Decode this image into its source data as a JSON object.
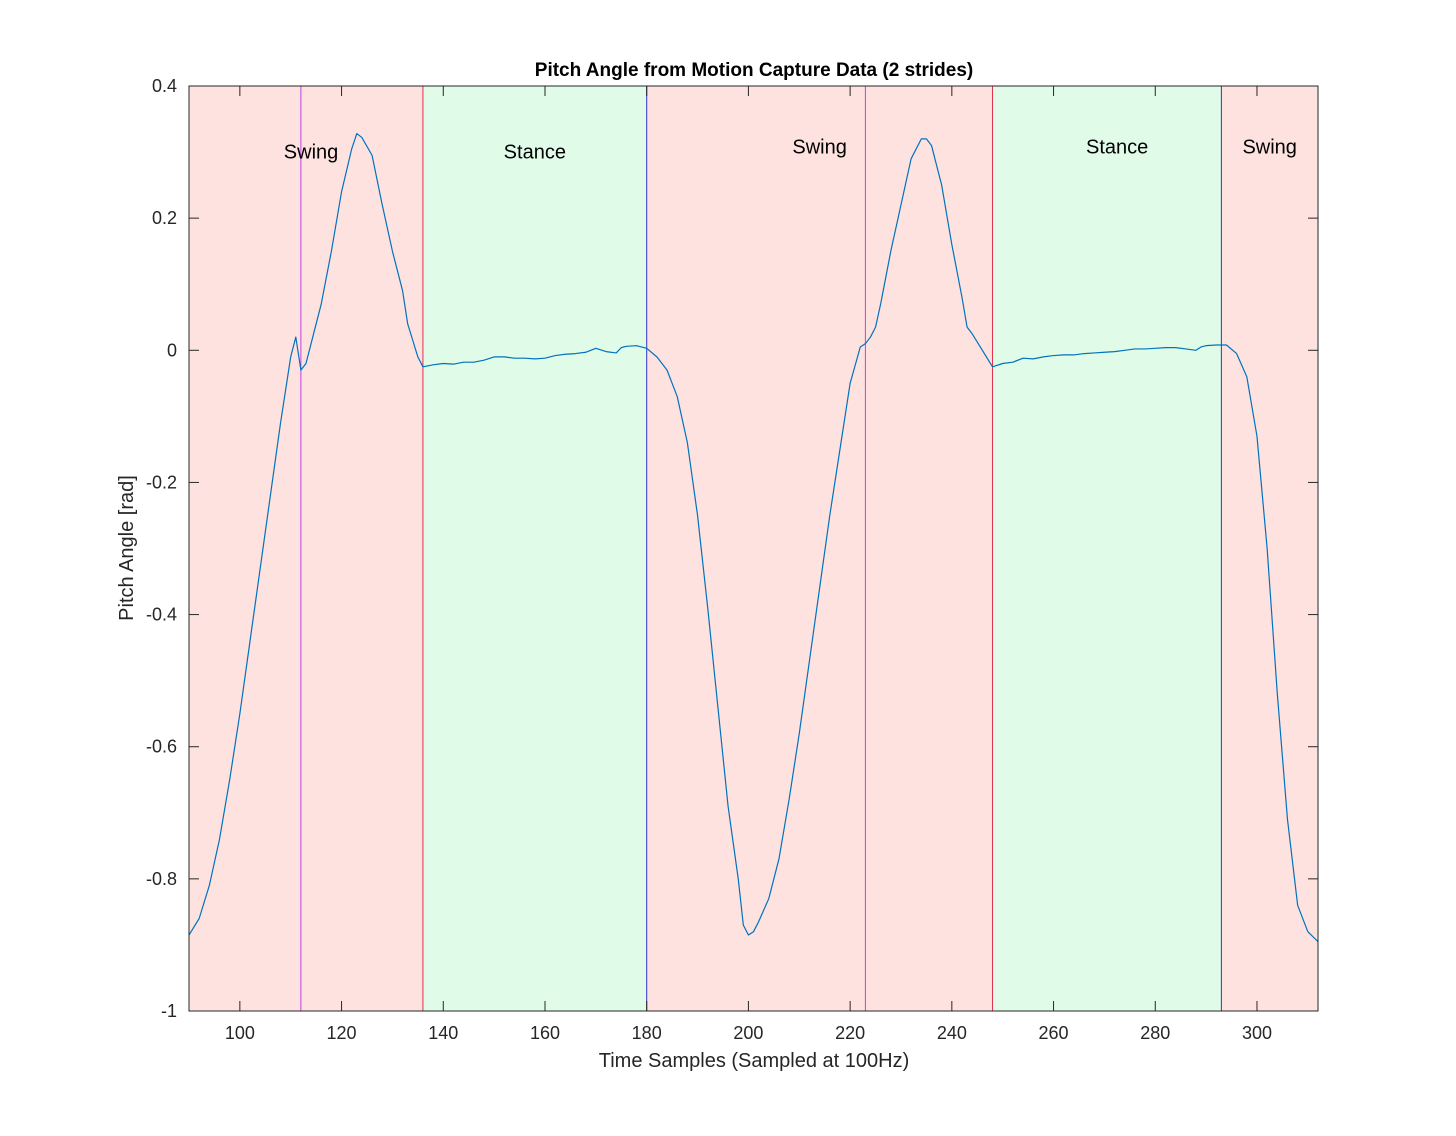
{
  "chart_data": {
    "type": "line",
    "title": "Pitch Angle from Motion Capture Data (2 strides)",
    "xlabel": "Time Samples (Sampled at 100Hz)",
    "ylabel": "Pitch Angle [rad]",
    "xlim": [
      90,
      312
    ],
    "ylim": [
      -1,
      0.4
    ],
    "xticks": [
      100,
      120,
      140,
      160,
      180,
      200,
      220,
      240,
      260,
      280,
      300
    ],
    "yticks": [
      -1,
      -0.8,
      -0.6,
      -0.4,
      -0.2,
      0,
      0.2,
      0.4
    ],
    "grid": false,
    "legend": "none",
    "colors": {
      "line": "#0072BD",
      "swing_fill": "#FDE2E0",
      "stance_fill": "#E0FCE8",
      "toe_off_line": "#E0334A",
      "heel_strike_line": "#3333CC",
      "mid_swing_line": "#C040E0"
    },
    "phases": [
      {
        "label": "Swing",
        "x0": 90,
        "x1": 136,
        "type": "swing"
      },
      {
        "label": "Stance",
        "x0": 136,
        "x1": 180,
        "type": "stance"
      },
      {
        "label": "Swing",
        "x0": 180,
        "x1": 248,
        "type": "swing"
      },
      {
        "label": "Stance",
        "x0": 248,
        "x1": 293,
        "type": "stance"
      },
      {
        "label": "Swing",
        "x0": 293,
        "x1": 312,
        "type": "swing"
      }
    ],
    "phase_labels": [
      {
        "text": "Swing",
        "x": 114,
        "y": 0.29
      },
      {
        "text": "Stance",
        "x": 158,
        "y": 0.29
      },
      {
        "text": "Swing",
        "x": 214,
        "y": 0.298
      },
      {
        "text": "Stance",
        "x": 272.5,
        "y": 0.298
      },
      {
        "text": "Swing",
        "x": 302.5,
        "y": 0.298
      }
    ],
    "event_lines": [
      {
        "x": 112,
        "kind": "mid_swing"
      },
      {
        "x": 136,
        "kind": "toe_off"
      },
      {
        "x": 180,
        "kind": "heel_strike"
      },
      {
        "x": 223,
        "kind": "mid_swing"
      },
      {
        "x": 248,
        "kind": "toe_off"
      },
      {
        "x": 293,
        "kind": "heel_strike"
      }
    ],
    "series": [
      {
        "points": [
          [
            90,
            -0.885
          ],
          [
            92,
            -0.86
          ],
          [
            94,
            -0.81
          ],
          [
            96,
            -0.74
          ],
          [
            98,
            -0.65
          ],
          [
            100,
            -0.55
          ],
          [
            102,
            -0.44
          ],
          [
            104,
            -0.33
          ],
          [
            106,
            -0.22
          ],
          [
            108,
            -0.11
          ],
          [
            110,
            -0.01
          ],
          [
            111,
            0.02
          ],
          [
            112,
            -0.03
          ],
          [
            113,
            -0.02
          ],
          [
            114,
            0.01
          ],
          [
            116,
            0.07
          ],
          [
            118,
            0.15
          ],
          [
            120,
            0.24
          ],
          [
            122,
            0.305
          ],
          [
            123,
            0.328
          ],
          [
            124,
            0.322
          ],
          [
            126,
            0.295
          ],
          [
            128,
            0.22
          ],
          [
            130,
            0.15
          ],
          [
            132,
            0.09
          ],
          [
            133,
            0.04
          ],
          [
            134,
            0.015
          ],
          [
            135,
            -0.01
          ],
          [
            136,
            -0.025
          ],
          [
            138,
            -0.022
          ],
          [
            140,
            -0.02
          ],
          [
            142,
            -0.021
          ],
          [
            144,
            -0.018
          ],
          [
            146,
            -0.018
          ],
          [
            148,
            -0.015
          ],
          [
            150,
            -0.01
          ],
          [
            152,
            -0.01
          ],
          [
            154,
            -0.012
          ],
          [
            156,
            -0.012
          ],
          [
            158,
            -0.013
          ],
          [
            160,
            -0.012
          ],
          [
            162,
            -0.008
          ],
          [
            164,
            -0.006
          ],
          [
            166,
            -0.005
          ],
          [
            168,
            -0.003
          ],
          [
            170,
            0.003
          ],
          [
            172,
            -0.002
          ],
          [
            174,
            -0.004
          ],
          [
            175,
            0.004
          ],
          [
            176,
            0.006
          ],
          [
            178,
            0.007
          ],
          [
            180,
            0.003
          ],
          [
            182,
            -0.01
          ],
          [
            184,
            -0.03
          ],
          [
            186,
            -0.07
          ],
          [
            188,
            -0.14
          ],
          [
            190,
            -0.25
          ],
          [
            192,
            -0.39
          ],
          [
            194,
            -0.54
          ],
          [
            196,
            -0.69
          ],
          [
            198,
            -0.8
          ],
          [
            199,
            -0.87
          ],
          [
            200,
            -0.885
          ],
          [
            201,
            -0.88
          ],
          [
            202,
            -0.865
          ],
          [
            204,
            -0.83
          ],
          [
            206,
            -0.77
          ],
          [
            208,
            -0.68
          ],
          [
            210,
            -0.58
          ],
          [
            212,
            -0.47
          ],
          [
            214,
            -0.36
          ],
          [
            216,
            -0.25
          ],
          [
            218,
            -0.15
          ],
          [
            220,
            -0.05
          ],
          [
            222,
            0.005
          ],
          [
            223,
            0.01
          ],
          [
            224,
            0.02
          ],
          [
            225,
            0.035
          ],
          [
            226,
            0.07
          ],
          [
            228,
            0.15
          ],
          [
            230,
            0.22
          ],
          [
            232,
            0.29
          ],
          [
            234,
            0.32
          ],
          [
            235,
            0.32
          ],
          [
            236,
            0.31
          ],
          [
            238,
            0.25
          ],
          [
            240,
            0.16
          ],
          [
            242,
            0.08
          ],
          [
            243,
            0.035
          ],
          [
            244,
            0.025
          ],
          [
            246,
            0.0
          ],
          [
            248,
            -0.025
          ],
          [
            250,
            -0.02
          ],
          [
            252,
            -0.018
          ],
          [
            254,
            -0.012
          ],
          [
            256,
            -0.013
          ],
          [
            258,
            -0.01
          ],
          [
            260,
            -0.008
          ],
          [
            262,
            -0.007
          ],
          [
            264,
            -0.007
          ],
          [
            266,
            -0.005
          ],
          [
            268,
            -0.004
          ],
          [
            270,
            -0.003
          ],
          [
            272,
            -0.002
          ],
          [
            274,
            0.0
          ],
          [
            276,
            0.002
          ],
          [
            278,
            0.002
          ],
          [
            280,
            0.003
          ],
          [
            282,
            0.004
          ],
          [
            284,
            0.004
          ],
          [
            286,
            0.002
          ],
          [
            288,
            0.0
          ],
          [
            289,
            0.005
          ],
          [
            290,
            0.007
          ],
          [
            292,
            0.008
          ],
          [
            294,
            0.008
          ],
          [
            296,
            -0.005
          ],
          [
            298,
            -0.04
          ],
          [
            300,
            -0.13
          ],
          [
            302,
            -0.3
          ],
          [
            304,
            -0.52
          ],
          [
            306,
            -0.71
          ],
          [
            308,
            -0.84
          ],
          [
            310,
            -0.88
          ],
          [
            312,
            -0.895
          ]
        ]
      }
    ]
  }
}
